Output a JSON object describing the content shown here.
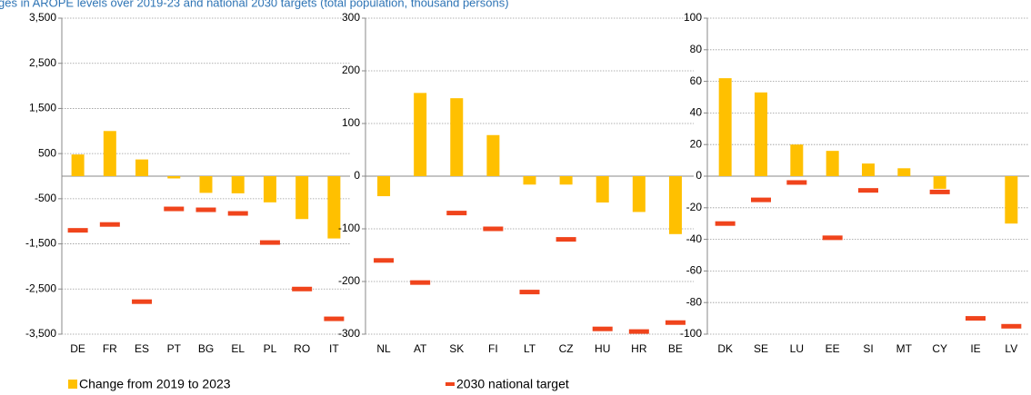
{
  "title": "ges in AROPE levels over 2019-23 and national 2030 targets (total population, thousand persons)",
  "chart_data": [
    {
      "type": "bar",
      "categories": [
        "DE",
        "FR",
        "ES",
        "PT",
        "BG",
        "EL",
        "PL",
        "RO",
        "IT"
      ],
      "series": [
        {
          "name": "Change from 2019 to 2023",
          "color": "#ffc000",
          "values": [
            480,
            1000,
            370,
            -50,
            -370,
            -380,
            -580,
            -950,
            -1380
          ]
        },
        {
          "name": "2030 national target",
          "type": "marker",
          "color": "#f0441c",
          "values": [
            -1200,
            -1070,
            -2780,
            -725,
            -745,
            -825,
            -1470,
            -2500,
            -3160
          ]
        }
      ],
      "ylim": [
        -3500,
        3500
      ],
      "yticks": [
        {
          "value": -3500,
          "label": "-3,500"
        },
        {
          "value": -2500,
          "label": "-2,500"
        },
        {
          "value": -1500,
          "label": "-1,500"
        },
        -500,
        500,
        {
          "value": 1500,
          "label": "1,500"
        },
        {
          "value": 2500,
          "label": "2,500"
        },
        {
          "value": 3500,
          "label": "3,500"
        }
      ],
      "grid": true
    },
    {
      "type": "bar",
      "categories": [
        "NL",
        "AT",
        "SK",
        "FI",
        "LT",
        "CZ",
        "HU",
        "HR",
        "BE"
      ],
      "series": [
        {
          "color": "#ffc000",
          "values": [
            -38,
            158,
            148,
            78,
            -16,
            -16,
            -50,
            -68,
            -110
          ]
        },
        {
          "type": "marker",
          "color": "#f0441c",
          "values": [
            -160,
            -202,
            -70,
            -100,
            -220,
            -120,
            -290,
            -295,
            -278
          ]
        }
      ],
      "ylim": [
        -300,
        300
      ],
      "yticks": [
        -300,
        -200,
        -100,
        0,
        100,
        200,
        300
      ],
      "grid": true
    },
    {
      "type": "bar",
      "categories": [
        "DK",
        "SE",
        "LU",
        "EE",
        "SI",
        "MT",
        "CY",
        "IE",
        "LV"
      ],
      "series": [
        {
          "color": "#ffc000",
          "values": [
            62,
            53,
            20,
            16,
            8,
            5,
            -8,
            null,
            -30
          ]
        },
        {
          "type": "marker",
          "color": "#f0441c",
          "values": [
            -30,
            -15,
            -4,
            -39,
            -9,
            null,
            -10,
            -90,
            -95
          ]
        }
      ],
      "ylim": [
        -100,
        100
      ],
      "yticks": [
        -100,
        -80,
        -60,
        -40,
        -20,
        0,
        20,
        40,
        60,
        80,
        100
      ],
      "grid": true
    }
  ]
}
